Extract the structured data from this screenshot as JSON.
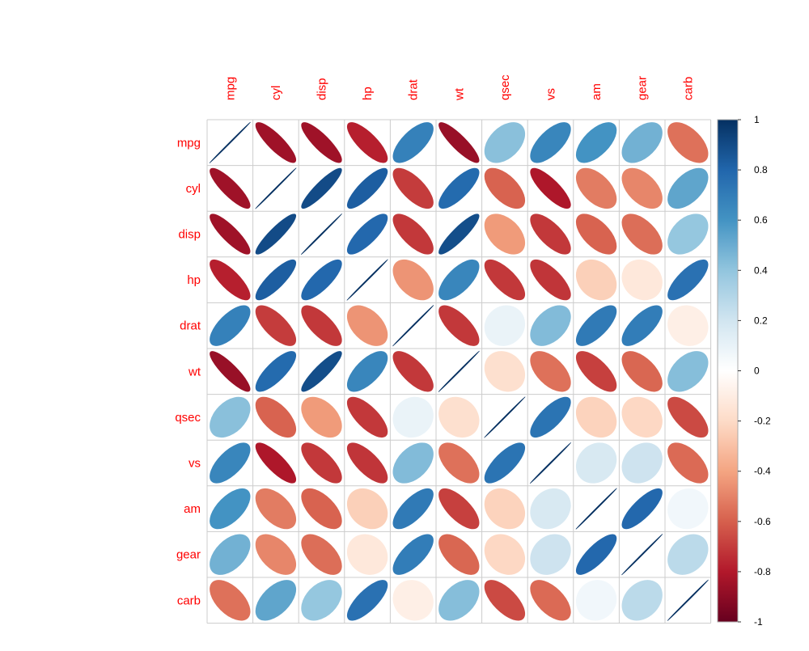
{
  "chart_data": {
    "type": "heatmap",
    "variables": [
      "mpg",
      "cyl",
      "disp",
      "hp",
      "drat",
      "wt",
      "qsec",
      "vs",
      "am",
      "gear",
      "carb"
    ],
    "matrix": [
      [
        1.0,
        -0.85,
        -0.85,
        -0.78,
        0.68,
        -0.87,
        0.42,
        0.66,
        0.6,
        0.48,
        -0.55
      ],
      [
        -0.85,
        1.0,
        0.9,
        0.83,
        -0.7,
        0.78,
        -0.59,
        -0.81,
        -0.52,
        -0.49,
        0.53
      ],
      [
        -0.85,
        0.9,
        1.0,
        0.79,
        -0.71,
        0.89,
        -0.43,
        -0.71,
        -0.59,
        -0.56,
        0.39
      ],
      [
        -0.78,
        0.83,
        0.79,
        1.0,
        -0.45,
        0.66,
        -0.71,
        -0.72,
        -0.24,
        -0.13,
        0.75
      ],
      [
        0.68,
        -0.7,
        -0.71,
        -0.45,
        1.0,
        -0.71,
        0.09,
        0.44,
        0.71,
        0.7,
        -0.09
      ],
      [
        -0.87,
        0.78,
        0.89,
        0.66,
        -0.71,
        1.0,
        -0.17,
        -0.55,
        -0.69,
        -0.58,
        0.43
      ],
      [
        0.42,
        -0.59,
        -0.43,
        -0.71,
        0.09,
        -0.17,
        1.0,
        0.74,
        -0.23,
        -0.21,
        -0.66
      ],
      [
        0.66,
        -0.81,
        -0.71,
        -0.72,
        0.44,
        -0.55,
        0.74,
        1.0,
        0.17,
        0.21,
        -0.57
      ],
      [
        0.6,
        -0.52,
        -0.59,
        -0.24,
        0.71,
        -0.69,
        -0.23,
        0.17,
        1.0,
        0.79,
        0.06
      ],
      [
        0.48,
        -0.49,
        -0.56,
        -0.13,
        0.7,
        -0.58,
        -0.21,
        0.21,
        0.79,
        1.0,
        0.27
      ],
      [
        -0.55,
        0.53,
        0.39,
        0.75,
        -0.09,
        0.43,
        -0.66,
        -0.57,
        0.06,
        0.27,
        1.0
      ]
    ],
    "legend": {
      "ticks": [
        "1",
        "0.8",
        "0.6",
        "0.4",
        "0.2",
        "0",
        "-0.2",
        "-0.4",
        "-0.6",
        "-0.8",
        "-1"
      ],
      "range": [
        -1,
        1
      ],
      "placement": "right"
    },
    "label_color": "#FF0000",
    "grid": true,
    "colors": {
      "positive": "#053061",
      "negative": "#67001F",
      "neutral": "#FFFFFF",
      "grid_line": "#CCCCCC"
    }
  }
}
